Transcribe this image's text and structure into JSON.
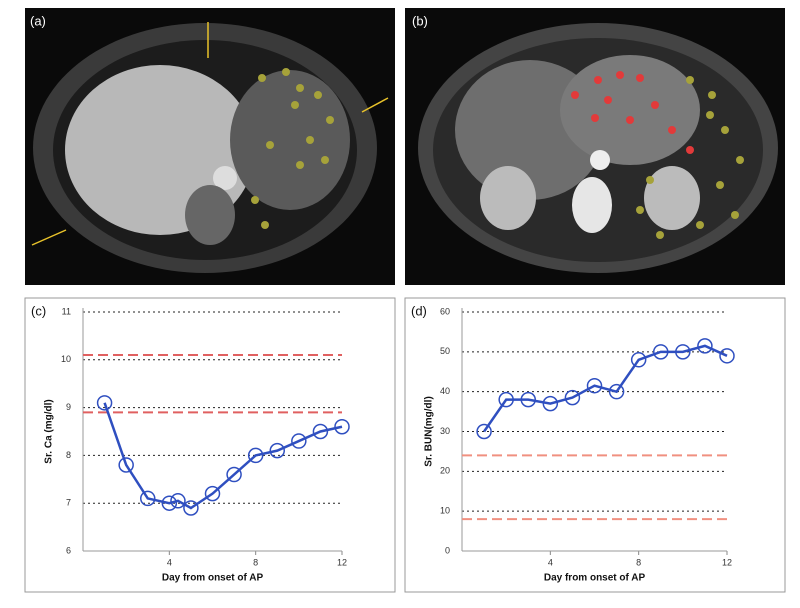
{
  "images": [
    {
      "label": "(a)"
    },
    {
      "label": "(b)"
    }
  ],
  "chart_data": [
    {
      "type": "line",
      "title": "(c)",
      "y_label": "Sr. Ca (mg/dl)",
      "x_label": "Day from onset of AP",
      "x": [
        1,
        2,
        3,
        4,
        4.4,
        5,
        6,
        7,
        8,
        9,
        10,
        11,
        12
      ],
      "values": [
        9.1,
        7.8,
        7.1,
        7.0,
        7.05,
        6.9,
        7.2,
        7.6,
        8.0,
        8.1,
        8.3,
        8.5,
        8.6
      ],
      "color": "#2f4fc0",
      "xlim": [
        0,
        12
      ],
      "xticks": [
        4,
        8,
        12
      ],
      "ylim": [
        6,
        11
      ],
      "yticks": [
        6,
        7,
        8,
        9,
        10,
        11
      ],
      "grid": true,
      "reference_lines": {
        "values": [
          10.1,
          8.9
        ],
        "color": "#e06060"
      }
    },
    {
      "type": "line",
      "title": "(d)",
      "y_label": "Sr. BUN(mg/dl)",
      "x_label": "Day from onset of AP",
      "x": [
        1,
        2,
        3,
        4,
        5,
        6,
        7,
        8,
        9,
        10,
        11,
        12
      ],
      "values": [
        30,
        38,
        38,
        37,
        38.5,
        41.5,
        40,
        48,
        50,
        50,
        51.5,
        49
      ],
      "color": "#2f4fc0",
      "xlim": [
        0,
        12
      ],
      "xticks": [
        4,
        8,
        12
      ],
      "ylim": [
        0,
        60
      ],
      "yticks": [
        0,
        10,
        20,
        30,
        40,
        50,
        60
      ],
      "grid": true,
      "reference_lines": {
        "values": [
          24,
          8
        ],
        "color": "#f09080"
      }
    }
  ]
}
